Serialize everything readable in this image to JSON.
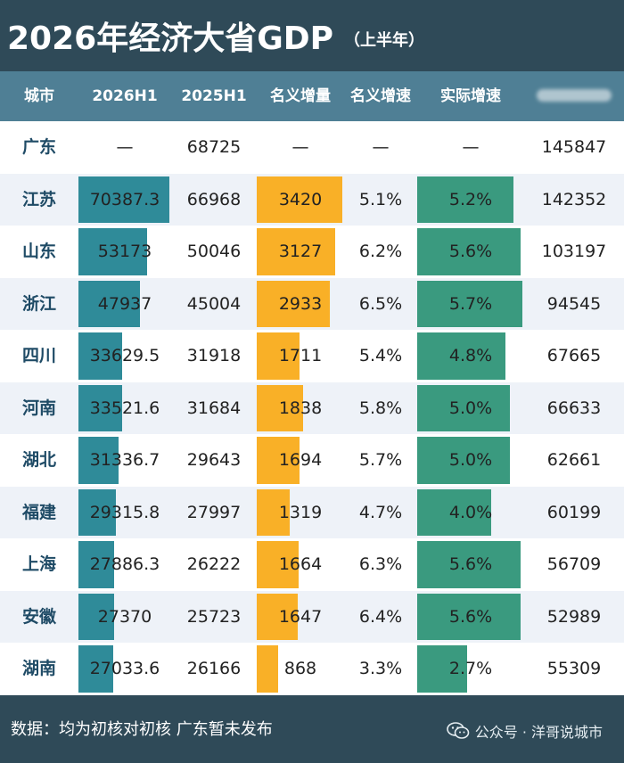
{
  "title": {
    "main": "2026年经济大省GDP",
    "sub": "（上半年）"
  },
  "colors": {
    "background": "#2f4a58",
    "header_bg": "#4f7f95",
    "bar_gdp": "#2f8b99",
    "bar_increase": "#f9b027",
    "bar_real_growth": "#3a9a7f",
    "row_alt": "#eef2f8"
  },
  "chart_data": {
    "type": "table",
    "columns": [
      "城市",
      "2026H1",
      "2025H1",
      "名义增量",
      "名义增速",
      "实际增速",
      ""
    ],
    "rows": [
      {
        "name": "广东",
        "h1_2026": "—",
        "h1_2025": "68725",
        "increase": "—",
        "nominal_growth": "—",
        "real_growth": "—",
        "last": "145847",
        "v2026": null,
        "vinc": null,
        "vreal": null
      },
      {
        "name": "江苏",
        "h1_2026": "70387.3",
        "h1_2025": "66968",
        "increase": "3420",
        "nominal_growth": "5.1%",
        "real_growth": "5.2%",
        "last": "142352",
        "v2026": 70387.3,
        "vinc": 3420,
        "vreal": 5.2
      },
      {
        "name": "山东",
        "h1_2026": "53173",
        "h1_2025": "50046",
        "increase": "3127",
        "nominal_growth": "6.2%",
        "real_growth": "5.6%",
        "last": "103197",
        "v2026": 53173,
        "vinc": 3127,
        "vreal": 5.6
      },
      {
        "name": "浙江",
        "h1_2026": "47937",
        "h1_2025": "45004",
        "increase": "2933",
        "nominal_growth": "6.5%",
        "real_growth": "5.7%",
        "last": "94545",
        "v2026": 47937,
        "vinc": 2933,
        "vreal": 5.7
      },
      {
        "name": "四川",
        "h1_2026": "33629.5",
        "h1_2025": "31918",
        "increase": "1711",
        "nominal_growth": "5.4%",
        "real_growth": "4.8%",
        "last": "67665",
        "v2026": 33629.5,
        "vinc": 1711,
        "vreal": 4.8
      },
      {
        "name": "河南",
        "h1_2026": "33521.6",
        "h1_2025": "31684",
        "increase": "1838",
        "nominal_growth": "5.8%",
        "real_growth": "5.0%",
        "last": "66633",
        "v2026": 33521.6,
        "vinc": 1838,
        "vreal": 5.0
      },
      {
        "name": "湖北",
        "h1_2026": "31336.7",
        "h1_2025": "29643",
        "increase": "1694",
        "nominal_growth": "5.7%",
        "real_growth": "5.0%",
        "last": "62661",
        "v2026": 31336.7,
        "vinc": 1694,
        "vreal": 5.0
      },
      {
        "name": "福建",
        "h1_2026": "29315.8",
        "h1_2025": "27997",
        "increase": "1319",
        "nominal_growth": "4.7%",
        "real_growth": "4.0%",
        "last": "60199",
        "v2026": 29315.8,
        "vinc": 1319,
        "vreal": 4.0
      },
      {
        "name": "上海",
        "h1_2026": "27886.3",
        "h1_2025": "26222",
        "increase": "1664",
        "nominal_growth": "6.3%",
        "real_growth": "5.6%",
        "last": "56709",
        "v2026": 27886.3,
        "vinc": 1664,
        "vreal": 5.6
      },
      {
        "name": "安徽",
        "h1_2026": "27370",
        "h1_2025": "25723",
        "increase": "1647",
        "nominal_growth": "6.4%",
        "real_growth": "5.6%",
        "last": "52989",
        "v2026": 27370,
        "vinc": 1647,
        "vreal": 5.6
      },
      {
        "name": "湖南",
        "h1_2026": "27033.6",
        "h1_2025": "26166",
        "increase": "868",
        "nominal_growth": "3.3%",
        "real_growth": "2.7%",
        "last": "55309",
        "v2026": 27033.6,
        "vinc": 868,
        "vreal": 2.7
      }
    ]
  },
  "footer": {
    "note": "数据：均为初核对初核 广东暂未发布",
    "source_icon": "wechat-icon",
    "source": "公众号 · 洋哥说城市"
  }
}
